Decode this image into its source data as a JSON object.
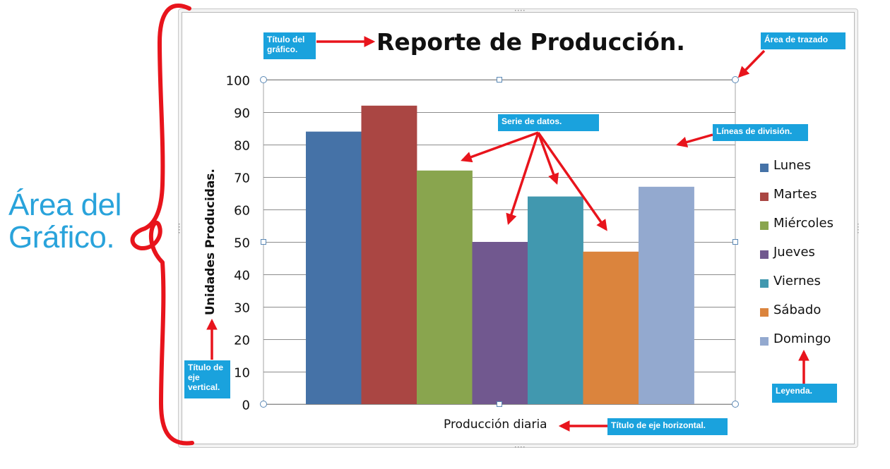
{
  "annotations": {
    "chart_area": "Área del\nGráfico.",
    "chart_title": "Título del gráfico.",
    "plot_area": "Área de trazado",
    "data_series": "Serie de datos.",
    "gridlines": "Líneas de división.",
    "vertical_axis_title": "Título de eje vertical.",
    "legend": "Leyenda.",
    "horizontal_axis_title": "Título de eje horizontal."
  },
  "colors": {
    "annotation_arrows": "#e8141c",
    "callout_background": "#1aa2dd",
    "big_label": "#29a3db",
    "gridlines": "#8c8c8c"
  },
  "chart_data": {
    "type": "bar",
    "title": "Reporte de Producción.",
    "xlabel": "Producción diaria",
    "ylabel": "Unidades Producidas.",
    "ylim": [
      0,
      100
    ],
    "yticks": [
      "0",
      "10",
      "20",
      "30",
      "40",
      "50",
      "60",
      "70",
      "80",
      "90",
      "100"
    ],
    "grid": true,
    "legend_position": "right",
    "series": [
      {
        "name": "Lunes",
        "value": 84,
        "color": "#4572a7"
      },
      {
        "name": "Martes",
        "value": 92,
        "color": "#aa4643"
      },
      {
        "name": "Miércoles",
        "value": 72,
        "color": "#89a54e"
      },
      {
        "name": "Jueves",
        "value": 50,
        "color": "#71588f"
      },
      {
        "name": "Viernes",
        "value": 64,
        "color": "#4198af"
      },
      {
        "name": "Sábado",
        "value": 47,
        "color": "#db843d"
      },
      {
        "name": "Domingo",
        "value": 67,
        "color": "#93a9cf"
      }
    ]
  }
}
